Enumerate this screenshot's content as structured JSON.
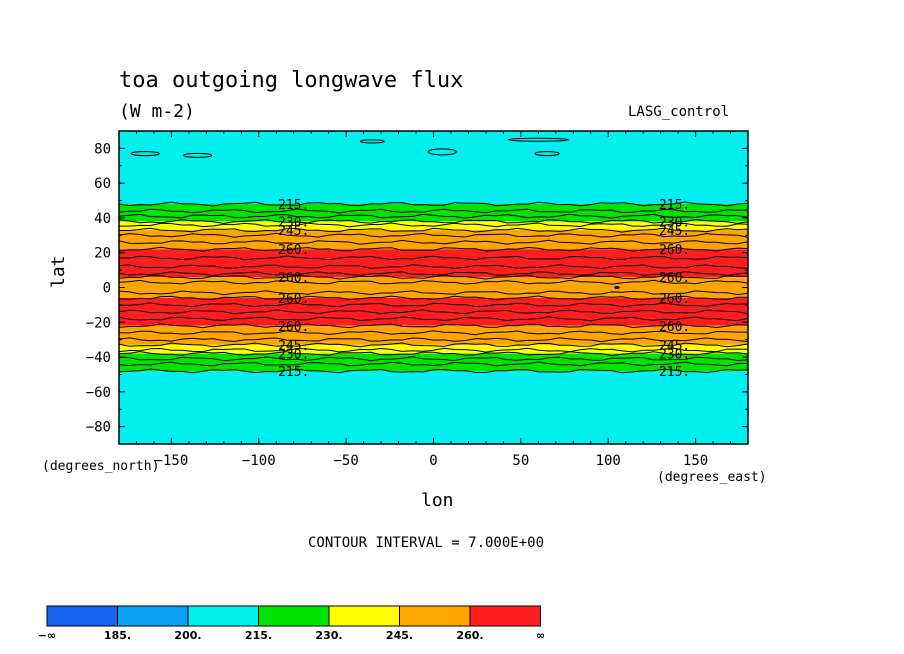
{
  "header": {
    "title": "toa outgoing longwave flux",
    "units": "(W m-2)",
    "run_name": "LASG_control"
  },
  "footer": {
    "contour_interval": "CONTOUR INTERVAL = 7.000E+00"
  },
  "axes": {
    "xlabel": "lon",
    "ylabel": "lat",
    "x_units": "(degrees_east)",
    "y_units": "(degrees_north)"
  },
  "colors": {
    "below_185": "#1464f0",
    "185_200": "#0ca0f0",
    "200_215": "#00f0f0",
    "215_230": "#00e400",
    "230_245": "#ffff00",
    "245_260": "#ffa500",
    "above_260": "#ff1e1e"
  },
  "chart_data": {
    "type": "contour",
    "title": "toa outgoing longwave flux",
    "units": "(W m-2)",
    "xlabel": "lon",
    "ylabel": "lat",
    "xlim": [
      -180,
      180
    ],
    "ylim": [
      -90,
      90
    ],
    "x_ticks": [
      -150,
      -100,
      -50,
      0,
      50,
      100,
      150
    ],
    "y_ticks": [
      80,
      60,
      40,
      20,
      0,
      -20,
      -40,
      -60,
      -80
    ],
    "x_tick_labels": [
      "−150",
      "−100",
      "−50",
      "0",
      "50",
      "100",
      "150"
    ],
    "y_tick_labels": [
      "80",
      "60",
      "40",
      "20",
      "0",
      "−20",
      "−40",
      "−60",
      "−80"
    ],
    "contour_interval": 7.0,
    "bands": [
      {
        "lat_from": 90,
        "lat_to": 48,
        "range": "200_215"
      },
      {
        "lat_from": 48,
        "lat_to": 38,
        "range": "215_230"
      },
      {
        "lat_from": 38,
        "lat_to": 33,
        "range": "230_245"
      },
      {
        "lat_from": 33,
        "lat_to": 22,
        "range": "245_260"
      },
      {
        "lat_from": 22,
        "lat_to": 6,
        "range": "above_260"
      },
      {
        "lat_from": 6,
        "lat_to": -6,
        "range": "245_260"
      },
      {
        "lat_from": -6,
        "lat_to": -22,
        "range": "above_260"
      },
      {
        "lat_from": -22,
        "lat_to": -33,
        "range": "245_260"
      },
      {
        "lat_from": -33,
        "lat_to": -38,
        "range": "230_245"
      },
      {
        "lat_from": -38,
        "lat_to": -48,
        "range": "215_230"
      },
      {
        "lat_from": -48,
        "lat_to": -90,
        "range": "200_215"
      }
    ],
    "contour_lines_lat": [
      48,
      44,
      41,
      38,
      36,
      33,
      30,
      26,
      22,
      17,
      12,
      8,
      6,
      3,
      -3,
      -6,
      -10,
      -14,
      -18,
      -22,
      -26,
      -30,
      -33,
      -36,
      -38,
      -41,
      -44,
      -48
    ],
    "contour_labels": [
      {
        "text": "215.",
        "lon": [
          -80,
          138
        ],
        "lat": 48
      },
      {
        "text": "230.",
        "lon": [
          -80,
          138
        ],
        "lat": 38
      },
      {
        "text": "245.",
        "lon": [
          -80,
          138
        ],
        "lat": 33
      },
      {
        "text": "260.",
        "lon": [
          -80,
          138
        ],
        "lat": 22
      },
      {
        "text": "260.",
        "lon": [
          -80,
          138
        ],
        "lat": 6
      },
      {
        "text": "260.",
        "lon": [
          -80,
          138
        ],
        "lat": -6
      },
      {
        "text": "260.",
        "lon": [
          -80,
          138
        ],
        "lat": -22
      },
      {
        "text": "245.",
        "lon": [
          -80,
          138
        ],
        "lat": -33
      },
      {
        "text": "230.",
        "lon": [
          -80,
          138
        ],
        "lat": -38
      },
      {
        "text": "215.",
        "lon": [
          -80,
          138
        ],
        "lat": -48
      }
    ],
    "colorbar": {
      "labels": [
        "−∞",
        "185.",
        "200.",
        "215.",
        "230.",
        "245.",
        "260.",
        "∞"
      ],
      "ranges": [
        "below_185",
        "185_200",
        "200_215",
        "215_230",
        "230_245",
        "245_260",
        "above_260"
      ]
    }
  }
}
